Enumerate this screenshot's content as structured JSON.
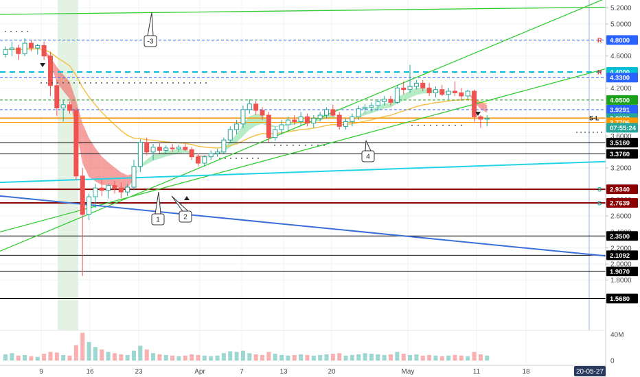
{
  "chart_data": {
    "type": "candlestick",
    "x_ticks": [
      "9",
      "16",
      "23",
      "Apr",
      "7",
      "13",
      "20",
      "May",
      "11",
      "18",
      "20-05-27"
    ],
    "y_ticks": [
      "5.2000",
      "5.0000",
      "4.6000",
      "4.2000",
      "4.0000",
      "3.6000",
      "3.2000",
      "2.8000",
      "2.6000",
      "2.4000",
      "2.2000",
      "2.0000",
      "1.8000"
    ],
    "ylim": [
      1.55,
      5.27
    ],
    "price_levels": [
      {
        "value": 4.8,
        "label": "4.8000",
        "color": "#2962ff",
        "style": "dashed",
        "marker": "R"
      },
      {
        "value": 4.4,
        "label": "4.4000",
        "color": "#00bcd4",
        "style": "dashed",
        "marker": "R"
      },
      {
        "value": 4.33,
        "label": "4.3300",
        "color": "#2962ff",
        "style": "dashed"
      },
      {
        "value": 4.05,
        "label": "4.0500",
        "color": "#1aa31a",
        "style": "dashed"
      },
      {
        "value": 3.9291,
        "label": "3.9291",
        "color": "#2962ff",
        "style": "dashed"
      },
      {
        "value": 3.823,
        "label": "3.8230",
        "color": "#26a69a",
        "style": "solid"
      },
      {
        "value": 3.7706,
        "label": "3.7706",
        "color": "#ff9800",
        "style": "solid"
      },
      {
        "value": 3.516,
        "label": "3.5160",
        "color": "#000000",
        "style": "solid"
      },
      {
        "value": 3.376,
        "label": "3.3760",
        "color": "#000000",
        "style": "solid"
      },
      {
        "value": 2.934,
        "label": "2.9340",
        "color": "#8b0000",
        "style": "solid",
        "marker": "S"
      },
      {
        "value": 2.7639,
        "label": "2.7639",
        "color": "#8b0000",
        "style": "solid",
        "marker": "S"
      },
      {
        "value": 2.35,
        "label": "2.3500",
        "color": "#000000",
        "style": "solid"
      },
      {
        "value": 2.1092,
        "label": "2.1092",
        "color": "#000000",
        "style": "solid"
      },
      {
        "value": 1.907,
        "label": "1.9070",
        "color": "#000000",
        "style": "solid"
      },
      {
        "value": 1.568,
        "label": "1.5680",
        "color": "#000000",
        "style": "solid"
      }
    ],
    "countdown_label": "07:55:24",
    "sl_label": "S-L",
    "volume_ticks": [
      "40M",
      "0"
    ],
    "annotations": [
      "-3",
      "1",
      "2",
      "4"
    ],
    "candles": [
      [
        4.62,
        4.72,
        4.58,
        4.68
      ],
      [
        4.68,
        4.78,
        4.6,
        4.7
      ],
      [
        4.7,
        4.74,
        4.55,
        4.63
      ],
      [
        4.63,
        4.82,
        4.6,
        4.76
      ],
      [
        4.76,
        4.8,
        4.66,
        4.7
      ],
      [
        4.7,
        4.75,
        4.62,
        4.73
      ],
      [
        4.73,
        4.78,
        4.55,
        4.6
      ],
      [
        4.6,
        4.65,
        4.1,
        4.23
      ],
      [
        4.23,
        4.3,
        3.85,
        3.95
      ],
      [
        3.95,
        4.05,
        3.78,
        3.99
      ],
      [
        3.99,
        4.03,
        3.88,
        3.92
      ],
      [
        3.92,
        3.95,
        3.05,
        3.1
      ],
      [
        3.1,
        3.2,
        1.85,
        2.62
      ],
      [
        2.62,
        2.88,
        2.55,
        2.84
      ],
      [
        2.84,
        3.0,
        2.7,
        2.95
      ],
      [
        2.95,
        3.05,
        2.85,
        2.92
      ],
      [
        2.92,
        3.0,
        2.82,
        2.98
      ],
      [
        2.98,
        3.04,
        2.88,
        2.95
      ],
      [
        2.95,
        3.02,
        2.82,
        2.9
      ],
      [
        2.9,
        3.0,
        2.85,
        2.96
      ],
      [
        2.96,
        3.3,
        2.92,
        3.22
      ],
      [
        3.22,
        3.56,
        3.15,
        3.52
      ],
      [
        3.52,
        3.58,
        3.36,
        3.4
      ],
      [
        3.4,
        3.5,
        3.3,
        3.46
      ],
      [
        3.46,
        3.52,
        3.38,
        3.42
      ],
      [
        3.42,
        3.48,
        3.38,
        3.45
      ],
      [
        3.45,
        3.5,
        3.4,
        3.44
      ],
      [
        3.44,
        3.49,
        3.4,
        3.46
      ],
      [
        3.46,
        3.5,
        3.41,
        3.43
      ],
      [
        3.43,
        3.46,
        3.3,
        3.34
      ],
      [
        3.34,
        3.38,
        3.22,
        3.26
      ],
      [
        3.26,
        3.36,
        3.22,
        3.34
      ],
      [
        3.34,
        3.42,
        3.3,
        3.38
      ],
      [
        3.38,
        3.44,
        3.34,
        3.4
      ],
      [
        3.4,
        3.58,
        3.38,
        3.55
      ],
      [
        3.55,
        3.72,
        3.52,
        3.68
      ],
      [
        3.68,
        3.8,
        3.62,
        3.75
      ],
      [
        3.75,
        3.98,
        3.7,
        3.93
      ],
      [
        3.93,
        4.06,
        3.88,
        4.0
      ],
      [
        4.0,
        4.04,
        3.86,
        3.92
      ],
      [
        3.92,
        3.96,
        3.8,
        3.86
      ],
      [
        3.86,
        3.9,
        3.52,
        3.58
      ],
      [
        3.58,
        3.72,
        3.54,
        3.68
      ],
      [
        3.68,
        3.8,
        3.62,
        3.74
      ],
      [
        3.74,
        3.84,
        3.66,
        3.8
      ],
      [
        3.8,
        3.86,
        3.74,
        3.78
      ],
      [
        3.78,
        3.9,
        3.72,
        3.84
      ],
      [
        3.84,
        3.88,
        3.72,
        3.76
      ],
      [
        3.76,
        3.86,
        3.7,
        3.82
      ],
      [
        3.82,
        3.9,
        3.78,
        3.86
      ],
      [
        3.86,
        3.96,
        3.82,
        3.93
      ],
      [
        3.93,
        3.99,
        3.84,
        3.86
      ],
      [
        3.86,
        3.9,
        3.68,
        3.72
      ],
      [
        3.72,
        3.82,
        3.68,
        3.78
      ],
      [
        3.78,
        3.88,
        3.72,
        3.84
      ],
      [
        3.84,
        3.98,
        3.8,
        3.94
      ],
      [
        3.94,
        4.0,
        3.88,
        3.96
      ],
      [
        3.96,
        4.02,
        3.9,
        3.98
      ],
      [
        3.98,
        4.06,
        3.92,
        4.03
      ],
      [
        4.03,
        4.1,
        3.98,
        4.06
      ],
      [
        4.06,
        4.1,
        3.98,
        4.02
      ],
      [
        4.02,
        4.24,
        4.0,
        4.2
      ],
      [
        4.2,
        4.28,
        4.12,
        4.18
      ],
      [
        4.18,
        4.49,
        4.14,
        4.22
      ],
      [
        4.22,
        4.3,
        4.18,
        4.26
      ],
      [
        4.26,
        4.3,
        4.16,
        4.2
      ],
      [
        4.2,
        4.26,
        4.1,
        4.14
      ],
      [
        4.14,
        4.22,
        4.08,
        4.18
      ],
      [
        4.18,
        4.24,
        4.1,
        4.12
      ],
      [
        4.12,
        4.2,
        4.06,
        4.16
      ],
      [
        4.16,
        4.28,
        4.1,
        4.14
      ],
      [
        4.14,
        4.2,
        4.04,
        4.1
      ],
      [
        4.1,
        4.18,
        4.06,
        4.16
      ],
      [
        4.16,
        4.18,
        3.78,
        3.84
      ],
      [
        3.84,
        3.86,
        3.7,
        3.81
      ],
      [
        3.81,
        3.86,
        3.72,
        3.82
      ]
    ],
    "volumes": [
      10,
      12,
      8,
      9,
      7,
      6,
      11,
      14,
      13,
      9,
      8,
      25,
      45,
      30,
      22,
      18,
      14,
      12,
      10,
      9,
      16,
      24,
      18,
      12,
      10,
      9,
      8,
      7,
      8,
      10,
      9,
      8,
      7,
      8,
      12,
      15,
      14,
      16,
      12,
      10,
      9,
      14,
      11,
      9,
      8,
      9,
      10,
      9,
      8,
      9,
      10,
      11,
      12,
      8,
      9,
      10,
      12,
      11,
      10,
      9,
      10,
      14,
      11,
      9,
      10,
      8,
      9,
      8,
      7,
      8,
      9,
      8,
      7,
      14,
      10,
      8
    ]
  },
  "colors": {
    "up": "#26a69a",
    "down": "#ef5350",
    "up_fill": "#ffffff",
    "down_fill": "#ef5350",
    "green_line": "#33cc33",
    "cyan_line": "#22d3e6",
    "blue_line": "#3a6fd8",
    "orange_level": "#f0a020",
    "ma_line": "#f5c24a",
    "highlight": "#e4f2e4"
  }
}
